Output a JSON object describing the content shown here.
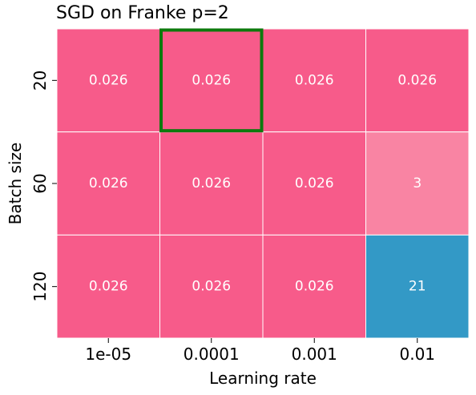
{
  "chart_data": {
    "type": "heatmap",
    "title": "SGD on Franke p=2",
    "xlabel": "Learning rate",
    "ylabel": "Batch size",
    "x_categories": [
      "1e-05",
      "0.0001",
      "0.001",
      "0.01"
    ],
    "y_categories": [
      "20",
      "60",
      "120"
    ],
    "values": [
      [
        0.026,
        0.026,
        0.026,
        0.026
      ],
      [
        0.026,
        0.026,
        0.026,
        3
      ],
      [
        0.026,
        0.026,
        0.026,
        21
      ]
    ],
    "cell_labels": [
      [
        "0.026",
        "0.026",
        "0.026",
        "0.026"
      ],
      [
        "0.026",
        "0.026",
        "0.026",
        "3"
      ],
      [
        "0.026",
        "0.026",
        "0.026",
        "21"
      ]
    ],
    "highlighted_cell": {
      "row": 0,
      "col": 1
    },
    "colors": {
      "low": "#f75b8a",
      "mid": "#f984a3",
      "high": "#3399c6",
      "highlight": "#0d7a0d",
      "cell_text": "#ffffff",
      "grid_line": "#ffffff"
    },
    "colorbar": false,
    "legend": "none"
  }
}
